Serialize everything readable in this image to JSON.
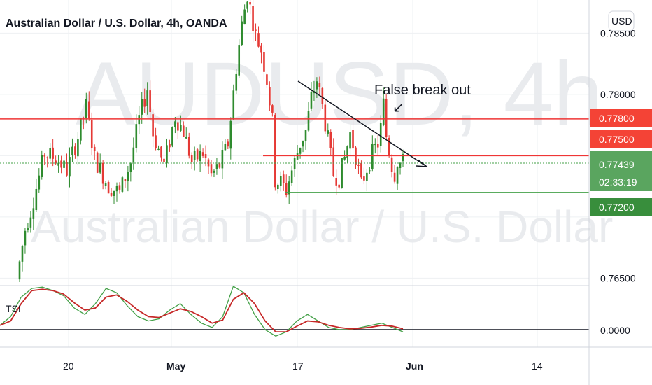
{
  "watermark": {
    "symbol": "AUDUSD, 4h",
    "name": "Australian Dollar / U.S. Dollar"
  },
  "header": {
    "title": "Australian Dollar / U.S. Dollar, 4h, OANDA"
  },
  "currency_button": "USD",
  "colors": {
    "up": "#2e8b2e",
    "down": "#e53935",
    "red_line": "#ef3535",
    "green_line": "#43a047",
    "grid": "#eef0f3",
    "axis_line": "#d1d4dc",
    "tsi_line": "#43a047",
    "tsi_signal": "#c62828"
  },
  "annotation": {
    "text": "False break out",
    "arrow_glyph": "↙"
  },
  "price_labels": [
    {
      "text": "0.77800",
      "color": "#f44336"
    },
    {
      "text": "0.77500",
      "color": "#f44336"
    },
    {
      "text": "0.77439",
      "color": "#5aa55f",
      "sub": "02:33:19"
    },
    {
      "text": "0.77200",
      "color": "#388e3c"
    }
  ],
  "tsi_label": "TSI",
  "tsi_axis_label": "0.0000",
  "chart_data": {
    "type": "candlestick",
    "title": "Australian Dollar / U.S. Dollar, 4h, OANDA",
    "y_ticks": [
      "0.78500",
      "0.78000",
      "0.77500",
      "0.76500"
    ],
    "y_tick_values": [
      0.785,
      0.78,
      0.775,
      0.765
    ],
    "ylim": [
      0.764,
      0.7895
    ],
    "x_ticks": [
      "20",
      "May",
      "17",
      "Jun",
      "14"
    ],
    "horizontal_levels": [
      {
        "value": 0.778,
        "color": "red",
        "start": "full"
      },
      {
        "value": 0.775,
        "color": "red",
        "start": "mid"
      },
      {
        "value": 0.772,
        "color": "green",
        "start": "mid"
      }
    ],
    "trendline": {
      "from": [
        0.7815,
        "17-May"
      ],
      "to": [
        0.7741,
        "end"
      ]
    },
    "last_price": 0.77439,
    "countdown": "02:33:19",
    "price_path": [
      [
        0,
        0.7649
      ],
      [
        3,
        0.769
      ],
      [
        5,
        0.7705
      ],
      [
        8,
        0.7733
      ],
      [
        10,
        0.7752
      ],
      [
        14,
        0.7748
      ],
      [
        18,
        0.7738
      ],
      [
        22,
        0.7765
      ],
      [
        25,
        0.779
      ],
      [
        28,
        0.7748
      ],
      [
        33,
        0.7725
      ],
      [
        37,
        0.772
      ],
      [
        41,
        0.7745
      ],
      [
        44,
        0.778
      ],
      [
        47,
        0.7805
      ],
      [
        49,
        0.7768
      ],
      [
        53,
        0.7742
      ],
      [
        57,
        0.7782
      ],
      [
        60,
        0.777
      ],
      [
        63,
        0.7745
      ],
      [
        67,
        0.7752
      ],
      [
        70,
        0.7734
      ],
      [
        73,
        0.7742
      ],
      [
        76,
        0.776
      ],
      [
        79,
        0.7822
      ],
      [
        81,
        0.7857
      ],
      [
        83,
        0.7882
      ],
      [
        86,
        0.7848
      ],
      [
        88,
        0.7836
      ],
      [
        90,
        0.7812
      ],
      [
        92,
        0.7778
      ],
      [
        93,
        0.773
      ],
      [
        95,
        0.7728
      ],
      [
        97,
        0.7722
      ],
      [
        99,
        0.7738
      ],
      [
        102,
        0.776
      ],
      [
        104,
        0.777
      ],
      [
        106,
        0.7797
      ],
      [
        108,
        0.7812
      ],
      [
        110,
        0.779
      ],
      [
        112,
        0.7763
      ],
      [
        114,
        0.7735
      ],
      [
        116,
        0.7732
      ],
      [
        118,
        0.7748
      ],
      [
        120,
        0.7768
      ],
      [
        122,
        0.775
      ],
      [
        124,
        0.7726
      ],
      [
        126,
        0.774
      ],
      [
        128,
        0.7752
      ],
      [
        130,
        0.776
      ],
      [
        131,
        0.7773
      ],
      [
        132,
        0.7792
      ],
      [
        133,
        0.7766
      ],
      [
        134,
        0.7754
      ],
      [
        135,
        0.7742
      ],
      [
        136,
        0.7735
      ],
      [
        137,
        0.7746
      ],
      [
        138,
        0.7744
      ]
    ],
    "tsi": {
      "series": [
        {
          "name": "TSI",
          "values": [
            0.1,
            0.3,
            0.75,
            0.95,
            0.98,
            0.9,
            0.78,
            0.5,
            0.35,
            0.6,
            0.95,
            0.85,
            0.55,
            0.3,
            0.2,
            0.25,
            0.45,
            0.6,
            0.35,
            0.15,
            0.05,
            0.3,
            1.0,
            0.85,
            0.35,
            0.0,
            -0.15,
            -0.05,
            0.2,
            0.35,
            0.2,
            0.05,
            0.0,
            0.0,
            0.05,
            0.1,
            0.15,
            0.05,
            -0.05
          ]
        },
        {
          "name": "Signal",
          "values": [
            0.1,
            0.2,
            0.6,
            0.9,
            0.93,
            0.9,
            0.82,
            0.62,
            0.45,
            0.5,
            0.75,
            0.8,
            0.65,
            0.45,
            0.3,
            0.28,
            0.38,
            0.48,
            0.42,
            0.3,
            0.15,
            0.22,
            0.7,
            0.85,
            0.6,
            0.2,
            -0.05,
            -0.05,
            0.08,
            0.2,
            0.18,
            0.1,
            0.05,
            0.02,
            0.03,
            0.06,
            0.1,
            0.08,
            0.02
          ]
        }
      ],
      "zero_line": 0
    }
  }
}
